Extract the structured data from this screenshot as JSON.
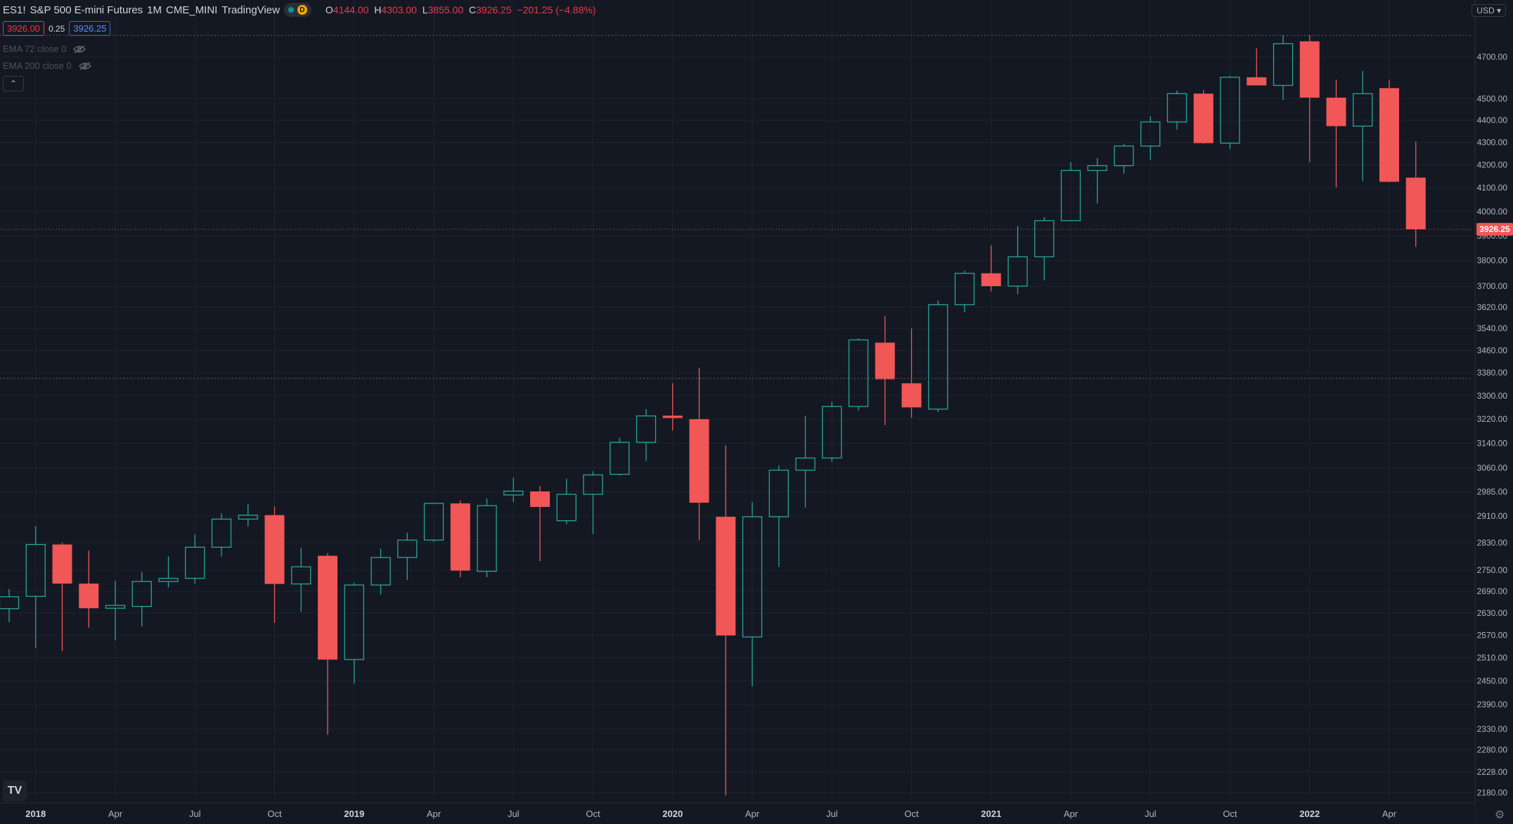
{
  "header": {
    "symbol": "ES1!",
    "title": "S&P 500 E-mini Futures",
    "interval": "1M",
    "exchange": "CME_MINI",
    "source": "TradingView",
    "status_badge": "D",
    "ohlc": {
      "o_label": "O",
      "o": "4144.00",
      "h_label": "H",
      "h": "4303.00",
      "l_label": "L",
      "l": "3855.00",
      "c_label": "C",
      "c": "3926.25",
      "change": "−201.25 (−4.88%)"
    }
  },
  "quote": {
    "sell": "3926.00",
    "spread": "0.25",
    "buy": "3926.25"
  },
  "indicators": [
    {
      "label": "EMA 72 close 0"
    },
    {
      "label": "EMA 200 close 0"
    }
  ],
  "currency": "USD",
  "colors": {
    "background": "#141823",
    "up": "#26a69a",
    "down": "#f05756",
    "grid": "#1f2330",
    "text": "#b2b5be"
  },
  "chart_data": {
    "type": "candlestick",
    "symbol": "ES1!",
    "interval": "1M",
    "y_scale": "log",
    "ylim": [
      2160,
      4880
    ],
    "current_price": 3926.25,
    "y_ticks": [
      2180.0,
      2228.0,
      2280.0,
      2330.0,
      2390.0,
      2450.0,
      2510.0,
      2570.0,
      2630.0,
      2690.0,
      2750.0,
      2830.0,
      2910.0,
      2985.0,
      3060.0,
      3140.0,
      3220.0,
      3300.0,
      3380.0,
      3460.0,
      3540.0,
      3620.0,
      3700.0,
      3800.0,
      3900.0,
      4000.0,
      4100.0,
      4200.0,
      4300.0,
      4400.0,
      4500.0,
      4700.0
    ],
    "x_ticks": [
      {
        "label": "2018",
        "index": 1
      },
      {
        "label": "Apr",
        "index": 4
      },
      {
        "label": "Jul",
        "index": 7
      },
      {
        "label": "Oct",
        "index": 10
      },
      {
        "label": "2019",
        "index": 13
      },
      {
        "label": "Apr",
        "index": 16
      },
      {
        "label": "Jul",
        "index": 19
      },
      {
        "label": "Oct",
        "index": 22
      },
      {
        "label": "2020",
        "index": 25
      },
      {
        "label": "Apr",
        "index": 28
      },
      {
        "label": "Jul",
        "index": 31
      },
      {
        "label": "Oct",
        "index": 34
      },
      {
        "label": "2021",
        "index": 37
      },
      {
        "label": "Apr",
        "index": 40
      },
      {
        "label": "Jul",
        "index": 43
      },
      {
        "label": "Oct",
        "index": 46
      },
      {
        "label": "2022",
        "index": 49
      },
      {
        "label": "Apr",
        "index": 52
      }
    ],
    "candles": [
      {
        "t": "2017-12",
        "o": 2642,
        "h": 2697,
        "l": 2605,
        "c": 2675
      },
      {
        "t": "2018-01",
        "o": 2676,
        "h": 2880,
        "l": 2535,
        "c": 2825
      },
      {
        "t": "2018-02",
        "o": 2825,
        "h": 2830,
        "l": 2528,
        "c": 2712
      },
      {
        "t": "2018-03",
        "o": 2712,
        "h": 2807,
        "l": 2590,
        "c": 2643
      },
      {
        "t": "2018-04",
        "o": 2643,
        "h": 2720,
        "l": 2556,
        "c": 2651
      },
      {
        "t": "2018-05",
        "o": 2648,
        "h": 2745,
        "l": 2593,
        "c": 2718
      },
      {
        "t": "2018-06",
        "o": 2718,
        "h": 2790,
        "l": 2701,
        "c": 2727
      },
      {
        "t": "2018-07",
        "o": 2727,
        "h": 2855,
        "l": 2712,
        "c": 2817
      },
      {
        "t": "2018-08",
        "o": 2817,
        "h": 2918,
        "l": 2790,
        "c": 2901
      },
      {
        "t": "2018-09",
        "o": 2901,
        "h": 2946,
        "l": 2879,
        "c": 2913
      },
      {
        "t": "2018-10",
        "o": 2913,
        "h": 2940,
        "l": 2603,
        "c": 2711
      },
      {
        "t": "2018-11",
        "o": 2711,
        "h": 2815,
        "l": 2633,
        "c": 2760
      },
      {
        "t": "2018-12",
        "o": 2792,
        "h": 2800,
        "l": 2316,
        "c": 2505
      },
      {
        "t": "2019-01",
        "o": 2505,
        "h": 2714,
        "l": 2443,
        "c": 2708
      },
      {
        "t": "2019-02",
        "o": 2708,
        "h": 2813,
        "l": 2681,
        "c": 2787
      },
      {
        "t": "2019-03",
        "o": 2787,
        "h": 2860,
        "l": 2722,
        "c": 2838
      },
      {
        "t": "2019-04",
        "o": 2838,
        "h": 2950,
        "l": 2832,
        "c": 2949
      },
      {
        "t": "2019-05",
        "o": 2949,
        "h": 2958,
        "l": 2730,
        "c": 2749
      },
      {
        "t": "2019-06",
        "o": 2747,
        "h": 2964,
        "l": 2730,
        "c": 2942
      },
      {
        "t": "2019-07",
        "o": 2975,
        "h": 3029,
        "l": 2953,
        "c": 2987
      },
      {
        "t": "2019-08",
        "o": 2986,
        "h": 3003,
        "l": 2776,
        "c": 2938
      },
      {
        "t": "2019-09",
        "o": 2896,
        "h": 3026,
        "l": 2886,
        "c": 2977
      },
      {
        "t": "2019-10",
        "o": 2977,
        "h": 3050,
        "l": 2856,
        "c": 3038
      },
      {
        "t": "2019-11",
        "o": 3040,
        "h": 3158,
        "l": 3036,
        "c": 3143
      },
      {
        "t": "2019-12",
        "o": 3143,
        "h": 3254,
        "l": 3083,
        "c": 3231
      },
      {
        "t": "2020-01",
        "o": 3232,
        "h": 3343,
        "l": 3182,
        "c": 3224
      },
      {
        "t": "2020-02",
        "o": 3220,
        "h": 3398,
        "l": 2837,
        "c": 2951
      },
      {
        "t": "2020-03",
        "o": 2908,
        "h": 3133,
        "l": 2174,
        "c": 2569
      },
      {
        "t": "2020-04",
        "o": 2565,
        "h": 2953,
        "l": 2436,
        "c": 2908
      },
      {
        "t": "2020-05",
        "o": 2908,
        "h": 3068,
        "l": 2760,
        "c": 3053
      },
      {
        "t": "2020-06",
        "o": 3053,
        "h": 3232,
        "l": 2936,
        "c": 3092
      },
      {
        "t": "2020-07",
        "o": 3092,
        "h": 3279,
        "l": 3079,
        "c": 3263
      },
      {
        "t": "2020-08",
        "o": 3263,
        "h": 3504,
        "l": 3250,
        "c": 3498
      },
      {
        "t": "2020-09",
        "o": 3488,
        "h": 3586,
        "l": 3200,
        "c": 3357
      },
      {
        "t": "2020-10",
        "o": 3343,
        "h": 3540,
        "l": 3225,
        "c": 3260
      },
      {
        "t": "2020-11",
        "o": 3254,
        "h": 3645,
        "l": 3244,
        "c": 3629
      },
      {
        "t": "2020-12",
        "o": 3629,
        "h": 3760,
        "l": 3600,
        "c": 3750
      },
      {
        "t": "2021-01",
        "o": 3750,
        "h": 3861,
        "l": 3680,
        "c": 3700
      },
      {
        "t": "2021-02",
        "o": 3700,
        "h": 3940,
        "l": 3669,
        "c": 3815
      },
      {
        "t": "2021-03",
        "o": 3815,
        "h": 3976,
        "l": 3723,
        "c": 3962
      },
      {
        "t": "2021-04",
        "o": 3962,
        "h": 4212,
        "l": 3962,
        "c": 4175
      },
      {
        "t": "2021-05",
        "o": 4175,
        "h": 4230,
        "l": 4034,
        "c": 4196
      },
      {
        "t": "2021-06",
        "o": 4196,
        "h": 4292,
        "l": 4161,
        "c": 4283
      },
      {
        "t": "2021-07",
        "o": 4283,
        "h": 4418,
        "l": 4222,
        "c": 4392
      },
      {
        "t": "2021-08",
        "o": 4392,
        "h": 4539,
        "l": 4357,
        "c": 4524
      },
      {
        "t": "2021-09",
        "o": 4524,
        "h": 4541,
        "l": 4293,
        "c": 4296
      },
      {
        "t": "2021-10",
        "o": 4296,
        "h": 4609,
        "l": 4269,
        "c": 4602
      },
      {
        "t": "2021-11",
        "o": 4602,
        "h": 4743,
        "l": 4582,
        "c": 4563
      },
      {
        "t": "2021-12",
        "o": 4563,
        "h": 4810,
        "l": 4495,
        "c": 4766
      },
      {
        "t": "2022-01",
        "o": 4778,
        "h": 4808,
        "l": 4212,
        "c": 4505
      },
      {
        "t": "2022-02",
        "o": 4505,
        "h": 4590,
        "l": 4101,
        "c": 4373
      },
      {
        "t": "2022-03",
        "o": 4373,
        "h": 4632,
        "l": 4129,
        "c": 4524
      },
      {
        "t": "2022-04",
        "o": 4550,
        "h": 4590,
        "l": 4124,
        "c": 4126
      },
      {
        "t": "2022-05",
        "o": 4144,
        "h": 4303,
        "l": 3855,
        "c": 3926.25
      }
    ]
  }
}
